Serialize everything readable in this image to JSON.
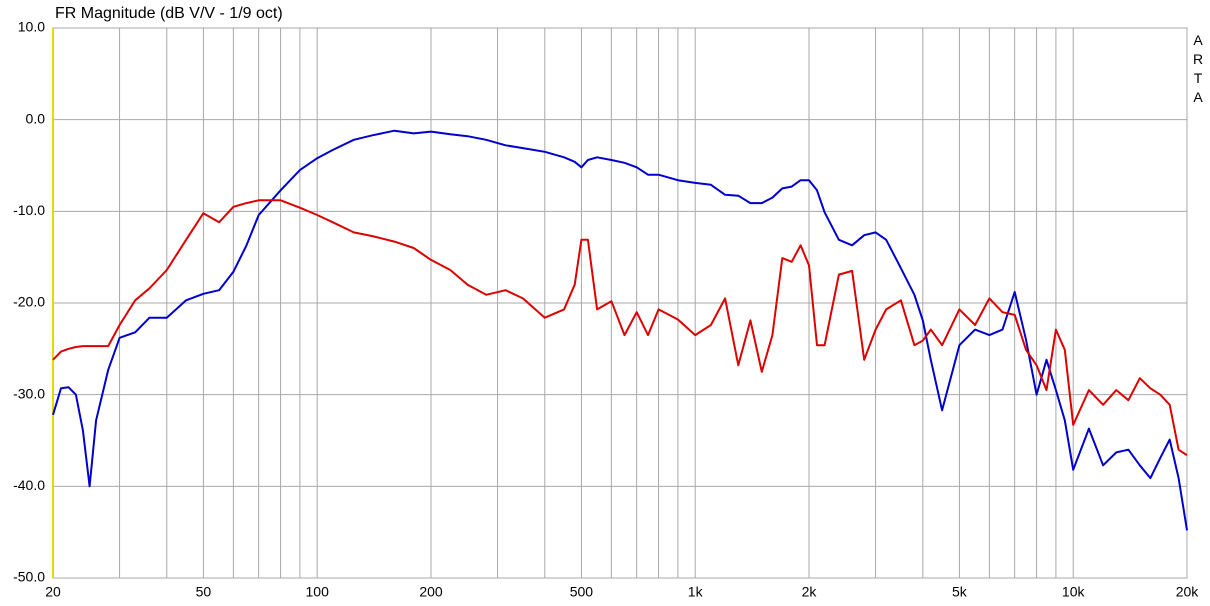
{
  "chart_data": {
    "type": "line",
    "title": "FR Magnitude (dB V/V - 1/9 oct)",
    "watermark": "ARTA",
    "log_x": true,
    "grid": true,
    "xlim": [
      20,
      20000
    ],
    "xticks": [
      20,
      50,
      100,
      200,
      500,
      {
        "value": 1000,
        "label": "1k"
      },
      {
        "value": 2000,
        "label": "2k"
      },
      {
        "value": 5000,
        "label": "5k"
      },
      {
        "value": 10000,
        "label": "10k"
      },
      {
        "value": 20000,
        "label": "20k"
      }
    ],
    "xminor": [
      30,
      40,
      60,
      70,
      80,
      90,
      300,
      400,
      600,
      700,
      800,
      900,
      3000,
      4000,
      6000,
      7000,
      8000,
      9000
    ],
    "ylim": [
      -50,
      10
    ],
    "yticks": [
      {
        "value": -50,
        "label": "-50.0"
      },
      {
        "value": -40,
        "label": "-40.0"
      },
      {
        "value": -30,
        "label": "-30.0"
      },
      {
        "value": -20,
        "label": "-20.0"
      },
      {
        "value": -10,
        "label": "-10.0"
      },
      {
        "value": 0,
        "label": "0.0"
      },
      {
        "value": 10,
        "label": "10.0"
      }
    ],
    "x": [
      20,
      21,
      22,
      23,
      24,
      25,
      26,
      28,
      30,
      33,
      36,
      40,
      45,
      50,
      55,
      60,
      65,
      70,
      80,
      90,
      100,
      110,
      125,
      140,
      160,
      180,
      200,
      225,
      250,
      280,
      315,
      350,
      400,
      450,
      480,
      500,
      520,
      550,
      600,
      650,
      700,
      750,
      800,
      900,
      1000,
      1100,
      1200,
      1300,
      1400,
      1500,
      1600,
      1700,
      1800,
      1900,
      2000,
      2100,
      2200,
      2400,
      2600,
      2800,
      3000,
      3200,
      3500,
      3800,
      4000,
      4200,
      4500,
      5000,
      5500,
      6000,
      6500,
      7000,
      7500,
      8000,
      8500,
      9000,
      9500,
      10000,
      11000,
      12000,
      13000,
      14000,
      15000,
      16000,
      17000,
      18000,
      19000,
      20000
    ],
    "series": [
      {
        "color": "#0000cc",
        "values": [
          -32.2,
          -29.3,
          -29.2,
          -30,
          -33.9,
          -40,
          -32.8,
          -27.3,
          -23.8,
          -23.2,
          -21.6,
          -21.6,
          -19.7,
          -19,
          -18.6,
          -16.6,
          -13.7,
          -10.4,
          -7.7,
          -5.5,
          -4.2,
          -3.3,
          -2.2,
          -1.7,
          -1.2,
          -1.5,
          -1.3,
          -1.6,
          -1.8,
          -2.2,
          -2.8,
          -3.1,
          -3.5,
          -4.1,
          -4.6,
          -5.2,
          -4.4,
          -4.1,
          -4.4,
          -4.7,
          -5.2,
          -6,
          -6,
          -6.6,
          -6.9,
          -7.1,
          -8.2,
          -8.3,
          -9.1,
          -9.1,
          -8.5,
          -7.5,
          -7.3,
          -6.6,
          -6.6,
          -7.7,
          -10.1,
          -13.1,
          -13.7,
          -12.6,
          -12.3,
          -13.1,
          -16.2,
          -19.1,
          -21.9,
          -26.2,
          -31.7,
          -24.6,
          -22.9,
          -23.5,
          -22.9,
          -18.8,
          -24,
          -30,
          -26.2,
          -29.5,
          -32.8,
          -38.2,
          -33.7,
          -37.7,
          -36.3,
          -36,
          -37.7,
          -39.1,
          -36.9,
          -34.9,
          -39.1,
          -44.8
        ]
      },
      {
        "color": "#dd0000",
        "values": [
          -26.2,
          -25.3,
          -25,
          -24.8,
          -24.7,
          -24.7,
          -24.7,
          -24.7,
          -22.4,
          -19.7,
          -18.4,
          -16.4,
          -13.1,
          -10.2,
          -11.2,
          -9.5,
          -9.1,
          -8.8,
          -8.8,
          -9.6,
          -10.4,
          -11.2,
          -12.3,
          -12.7,
          -13.3,
          -14,
          -15.3,
          -16.4,
          -18,
          -19.1,
          -18.6,
          -19.5,
          -21.6,
          -20.7,
          -18,
          -13.1,
          -13.1,
          -20.7,
          -19.8,
          -23.5,
          -21,
          -23.5,
          -20.7,
          -21.8,
          -23.5,
          -22.4,
          -19.5,
          -26.8,
          -21.9,
          -27.5,
          -23.5,
          -15.1,
          -15.5,
          -13.7,
          -15.9,
          -24.6,
          -24.6,
          -16.9,
          -16.5,
          -26.2,
          -22.9,
          -20.7,
          -19.7,
          -24.6,
          -24.1,
          -22.9,
          -24.6,
          -20.7,
          -22.4,
          -19.5,
          -21,
          -21.3,
          -25.1,
          -26.8,
          -29.5,
          -22.9,
          -25.1,
          -33.3,
          -29.5,
          -31.1,
          -29.5,
          -30.6,
          -28.2,
          -29.3,
          -30,
          -31.1,
          -36,
          -36.6
        ]
      }
    ]
  }
}
